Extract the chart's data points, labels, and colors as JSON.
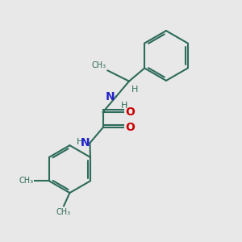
{
  "bg_color": "#e8e8e8",
  "bond_color": "#2d6b5a",
  "N_color": "#2222cc",
  "O_color": "#cc0000",
  "line_width": 1.5,
  "font_size_atom": 10,
  "font_size_small": 8,
  "xlim": [
    0,
    10
  ],
  "ylim": [
    0,
    10
  ]
}
